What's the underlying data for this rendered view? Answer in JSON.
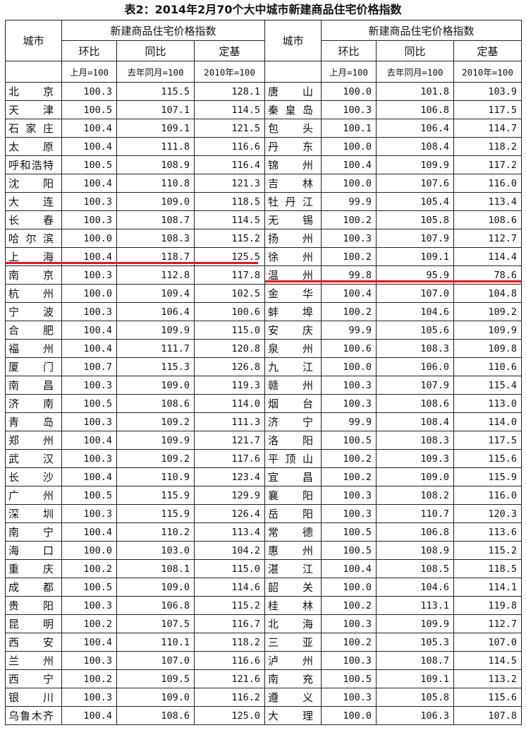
{
  "title": "表2：2014年2月70个大中城市新建商品住宅价格指数",
  "header": {
    "city": "城市",
    "group": "新建商品住宅价格指数",
    "mom": "环比",
    "yoy": "同比",
    "base": "定基",
    "mom_base": "上月=100",
    "yoy_base": "去年同月=100",
    "fixed_base": "2010年=100"
  },
  "rows": [
    {
      "l": {
        "city": "北　京",
        "mom": "100.3",
        "yoy": "115.5",
        "base": "128.1"
      },
      "r": {
        "city": "唐　山",
        "mom": "100.0",
        "yoy": "101.8",
        "base": "103.9"
      }
    },
    {
      "l": {
        "city": "天　津",
        "mom": "100.5",
        "yoy": "107.1",
        "base": "114.5"
      },
      "r": {
        "city": "秦皇岛",
        "mom": "100.3",
        "yoy": "106.8",
        "base": "117.5"
      }
    },
    {
      "l": {
        "city": "石家庄",
        "mom": "100.4",
        "yoy": "109.1",
        "base": "121.5"
      },
      "r": {
        "city": "包　头",
        "mom": "100.1",
        "yoy": "106.4",
        "base": "114.7"
      }
    },
    {
      "l": {
        "city": "太　原",
        "mom": "100.4",
        "yoy": "111.8",
        "base": "116.6"
      },
      "r": {
        "city": "丹　东",
        "mom": "100.0",
        "yoy": "108.4",
        "base": "118.2"
      }
    },
    {
      "l": {
        "city": "呼和浩特",
        "mom": "100.5",
        "yoy": "108.9",
        "base": "116.4"
      },
      "r": {
        "city": "锦　州",
        "mom": "100.4",
        "yoy": "109.9",
        "base": "117.2"
      }
    },
    {
      "l": {
        "city": "沈　阳",
        "mom": "100.4",
        "yoy": "110.8",
        "base": "121.3"
      },
      "r": {
        "city": "吉　林",
        "mom": "100.0",
        "yoy": "107.6",
        "base": "116.0"
      }
    },
    {
      "l": {
        "city": "大　连",
        "mom": "100.3",
        "yoy": "109.0",
        "base": "118.5"
      },
      "r": {
        "city": "牡丹江",
        "mom": "99.9",
        "yoy": "105.4",
        "base": "113.4"
      }
    },
    {
      "l": {
        "city": "长　春",
        "mom": "100.3",
        "yoy": "108.7",
        "base": "114.5"
      },
      "r": {
        "city": "无　锡",
        "mom": "100.2",
        "yoy": "105.8",
        "base": "108.6"
      }
    },
    {
      "l": {
        "city": "哈尔滨",
        "mom": "100.0",
        "yoy": "108.3",
        "base": "115.2"
      },
      "r": {
        "city": "扬　州",
        "mom": "100.3",
        "yoy": "107.9",
        "base": "112.7"
      }
    },
    {
      "l": {
        "city": "上　海",
        "mom": "100.4",
        "yoy": "118.7",
        "base": "125.5"
      },
      "r": {
        "city": "徐　州",
        "mom": "100.2",
        "yoy": "109.1",
        "base": "114.4"
      }
    },
    {
      "l": {
        "city": "南　京",
        "mom": "100.3",
        "yoy": "112.8",
        "base": "117.8"
      },
      "r": {
        "city": "温　州",
        "mom": "99.8",
        "yoy": "95.9",
        "base": "78.6"
      }
    },
    {
      "l": {
        "city": "杭　州",
        "mom": "100.0",
        "yoy": "109.4",
        "base": "102.5"
      },
      "r": {
        "city": "金　华",
        "mom": "100.4",
        "yoy": "107.0",
        "base": "104.8"
      }
    },
    {
      "l": {
        "city": "宁　波",
        "mom": "100.3",
        "yoy": "106.4",
        "base": "100.6"
      },
      "r": {
        "city": "蚌　埠",
        "mom": "100.2",
        "yoy": "104.6",
        "base": "109.2"
      }
    },
    {
      "l": {
        "city": "合　肥",
        "mom": "100.4",
        "yoy": "109.9",
        "base": "115.0"
      },
      "r": {
        "city": "安　庆",
        "mom": "99.9",
        "yoy": "105.6",
        "base": "109.9"
      }
    },
    {
      "l": {
        "city": "福　州",
        "mom": "100.4",
        "yoy": "111.7",
        "base": "120.8"
      },
      "r": {
        "city": "泉　州",
        "mom": "100.6",
        "yoy": "108.3",
        "base": "109.8"
      }
    },
    {
      "l": {
        "city": "厦　门",
        "mom": "100.7",
        "yoy": "115.3",
        "base": "126.8"
      },
      "r": {
        "city": "九　江",
        "mom": "100.0",
        "yoy": "106.0",
        "base": "110.6"
      }
    },
    {
      "l": {
        "city": "南　昌",
        "mom": "100.3",
        "yoy": "109.0",
        "base": "119.3"
      },
      "r": {
        "city": "赣　州",
        "mom": "100.3",
        "yoy": "107.9",
        "base": "115.4"
      }
    },
    {
      "l": {
        "city": "济　南",
        "mom": "100.5",
        "yoy": "108.6",
        "base": "114.0"
      },
      "r": {
        "city": "烟　台",
        "mom": "100.3",
        "yoy": "108.6",
        "base": "113.0"
      }
    },
    {
      "l": {
        "city": "青　岛",
        "mom": "100.3",
        "yoy": "109.2",
        "base": "111.3"
      },
      "r": {
        "city": "济　宁",
        "mom": "99.9",
        "yoy": "108.4",
        "base": "114.0"
      }
    },
    {
      "l": {
        "city": "郑　州",
        "mom": "100.4",
        "yoy": "109.9",
        "base": "121.7"
      },
      "r": {
        "city": "洛　阳",
        "mom": "100.5",
        "yoy": "108.3",
        "base": "117.5"
      }
    },
    {
      "l": {
        "city": "武　汉",
        "mom": "100.3",
        "yoy": "109.2",
        "base": "117.6"
      },
      "r": {
        "city": "平顶山",
        "mom": "100.2",
        "yoy": "109.3",
        "base": "115.6"
      }
    },
    {
      "l": {
        "city": "长　沙",
        "mom": "100.4",
        "yoy": "110.9",
        "base": "123.4"
      },
      "r": {
        "city": "宜　昌",
        "mom": "100.2",
        "yoy": "109.0",
        "base": "115.9"
      }
    },
    {
      "l": {
        "city": "广　州",
        "mom": "100.5",
        "yoy": "115.9",
        "base": "129.9"
      },
      "r": {
        "city": "襄　阳",
        "mom": "100.3",
        "yoy": "108.2",
        "base": "116.0"
      }
    },
    {
      "l": {
        "city": "深　圳",
        "mom": "100.3",
        "yoy": "115.9",
        "base": "126.4"
      },
      "r": {
        "city": "岳　阳",
        "mom": "100.3",
        "yoy": "110.7",
        "base": "120.3"
      }
    },
    {
      "l": {
        "city": "南　宁",
        "mom": "100.4",
        "yoy": "110.2",
        "base": "113.4"
      },
      "r": {
        "city": "常　德",
        "mom": "100.5",
        "yoy": "106.8",
        "base": "113.6"
      }
    },
    {
      "l": {
        "city": "海　口",
        "mom": "100.0",
        "yoy": "103.0",
        "base": "104.2"
      },
      "r": {
        "city": "惠　州",
        "mom": "100.5",
        "yoy": "108.9",
        "base": "115.2"
      }
    },
    {
      "l": {
        "city": "重　庆",
        "mom": "100.2",
        "yoy": "108.1",
        "base": "115.0"
      },
      "r": {
        "city": "湛　江",
        "mom": "100.4",
        "yoy": "108.5",
        "base": "118.5"
      }
    },
    {
      "l": {
        "city": "成　都",
        "mom": "100.5",
        "yoy": "109.0",
        "base": "114.6"
      },
      "r": {
        "city": "韶　关",
        "mom": "100.0",
        "yoy": "104.6",
        "base": "114.1"
      }
    },
    {
      "l": {
        "city": "贵　阳",
        "mom": "100.3",
        "yoy": "106.8",
        "base": "115.2"
      },
      "r": {
        "city": "桂　林",
        "mom": "100.2",
        "yoy": "113.1",
        "base": "119.8"
      }
    },
    {
      "l": {
        "city": "昆　明",
        "mom": "100.2",
        "yoy": "107.5",
        "base": "116.7"
      },
      "r": {
        "city": "北　海",
        "mom": "100.3",
        "yoy": "109.9",
        "base": "112.7"
      }
    },
    {
      "l": {
        "city": "西　安",
        "mom": "100.4",
        "yoy": "110.1",
        "base": "118.2"
      },
      "r": {
        "city": "三　亚",
        "mom": "100.2",
        "yoy": "105.3",
        "base": "107.0"
      }
    },
    {
      "l": {
        "city": "兰　州",
        "mom": "100.3",
        "yoy": "107.0",
        "base": "116.6"
      },
      "r": {
        "city": "泸　州",
        "mom": "100.3",
        "yoy": "108.7",
        "base": "114.5"
      }
    },
    {
      "l": {
        "city": "西　宁",
        "mom": "100.2",
        "yoy": "109.5",
        "base": "121.6"
      },
      "r": {
        "city": "南　充",
        "mom": "100.5",
        "yoy": "109.1",
        "base": "113.2"
      }
    },
    {
      "l": {
        "city": "银　川",
        "mom": "100.3",
        "yoy": "109.0",
        "base": "116.2"
      },
      "r": {
        "city": "遵　义",
        "mom": "100.3",
        "yoy": "105.8",
        "base": "115.6"
      }
    },
    {
      "l": {
        "city": "乌鲁木齐",
        "mom": "100.4",
        "yoy": "108.6",
        "base": "125.0"
      },
      "r": {
        "city": "大　理",
        "mom": "100.0",
        "yoy": "106.3",
        "base": "107.8"
      }
    }
  ],
  "highlight_color": "#e8141b"
}
